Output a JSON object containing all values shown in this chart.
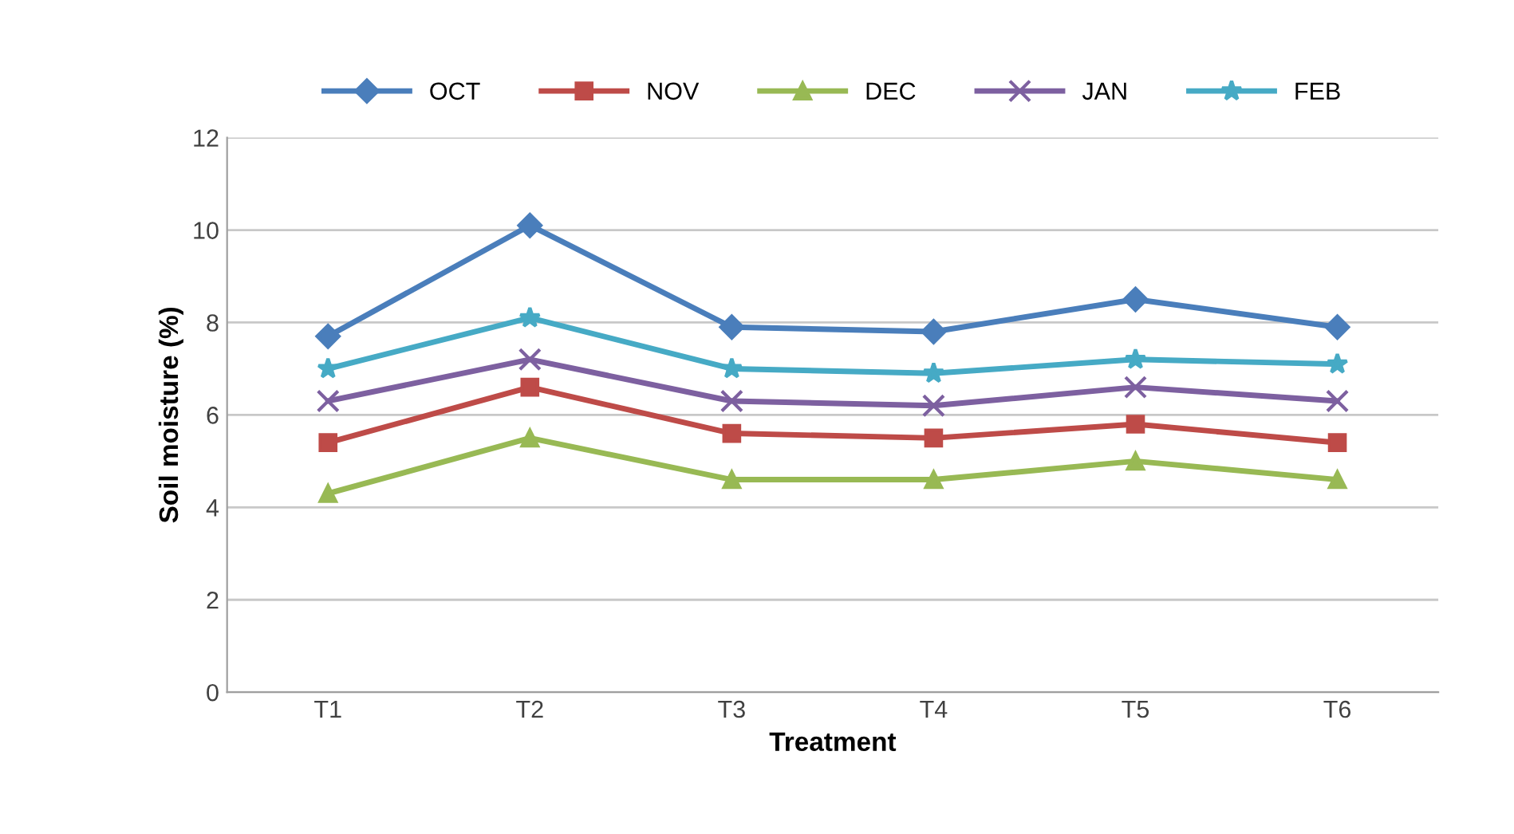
{
  "chart_data": {
    "type": "line",
    "xlabel": "Treatment",
    "ylabel": "Soil moisture (%)",
    "categories": [
      "T1",
      "T2",
      "T3",
      "T4",
      "T5",
      "T6"
    ],
    "series": [
      {
        "name": "OCT",
        "color": "#4a7ebb",
        "marker": "diamond",
        "values": [
          7.7,
          10.1,
          7.9,
          7.8,
          8.5,
          7.9
        ]
      },
      {
        "name": "NOV",
        "color": "#be4b48",
        "marker": "square",
        "values": [
          5.4,
          6.6,
          5.6,
          5.5,
          5.8,
          5.4
        ]
      },
      {
        "name": "DEC",
        "color": "#98b954",
        "marker": "triangle",
        "values": [
          4.3,
          5.5,
          4.6,
          4.6,
          5.0,
          4.6
        ]
      },
      {
        "name": "JAN",
        "color": "#7d60a0",
        "marker": "cross",
        "values": [
          6.3,
          7.2,
          6.3,
          6.2,
          6.6,
          6.3
        ]
      },
      {
        "name": "FEB",
        "color": "#46aac5",
        "marker": "star",
        "values": [
          7.0,
          8.1,
          7.0,
          6.9,
          7.2,
          7.1
        ]
      }
    ],
    "ylim": [
      0,
      12
    ],
    "yticks": [
      0,
      2,
      4,
      6,
      8,
      10,
      12
    ],
    "grid": "y",
    "legend": "top",
    "line_style": "solid"
  }
}
